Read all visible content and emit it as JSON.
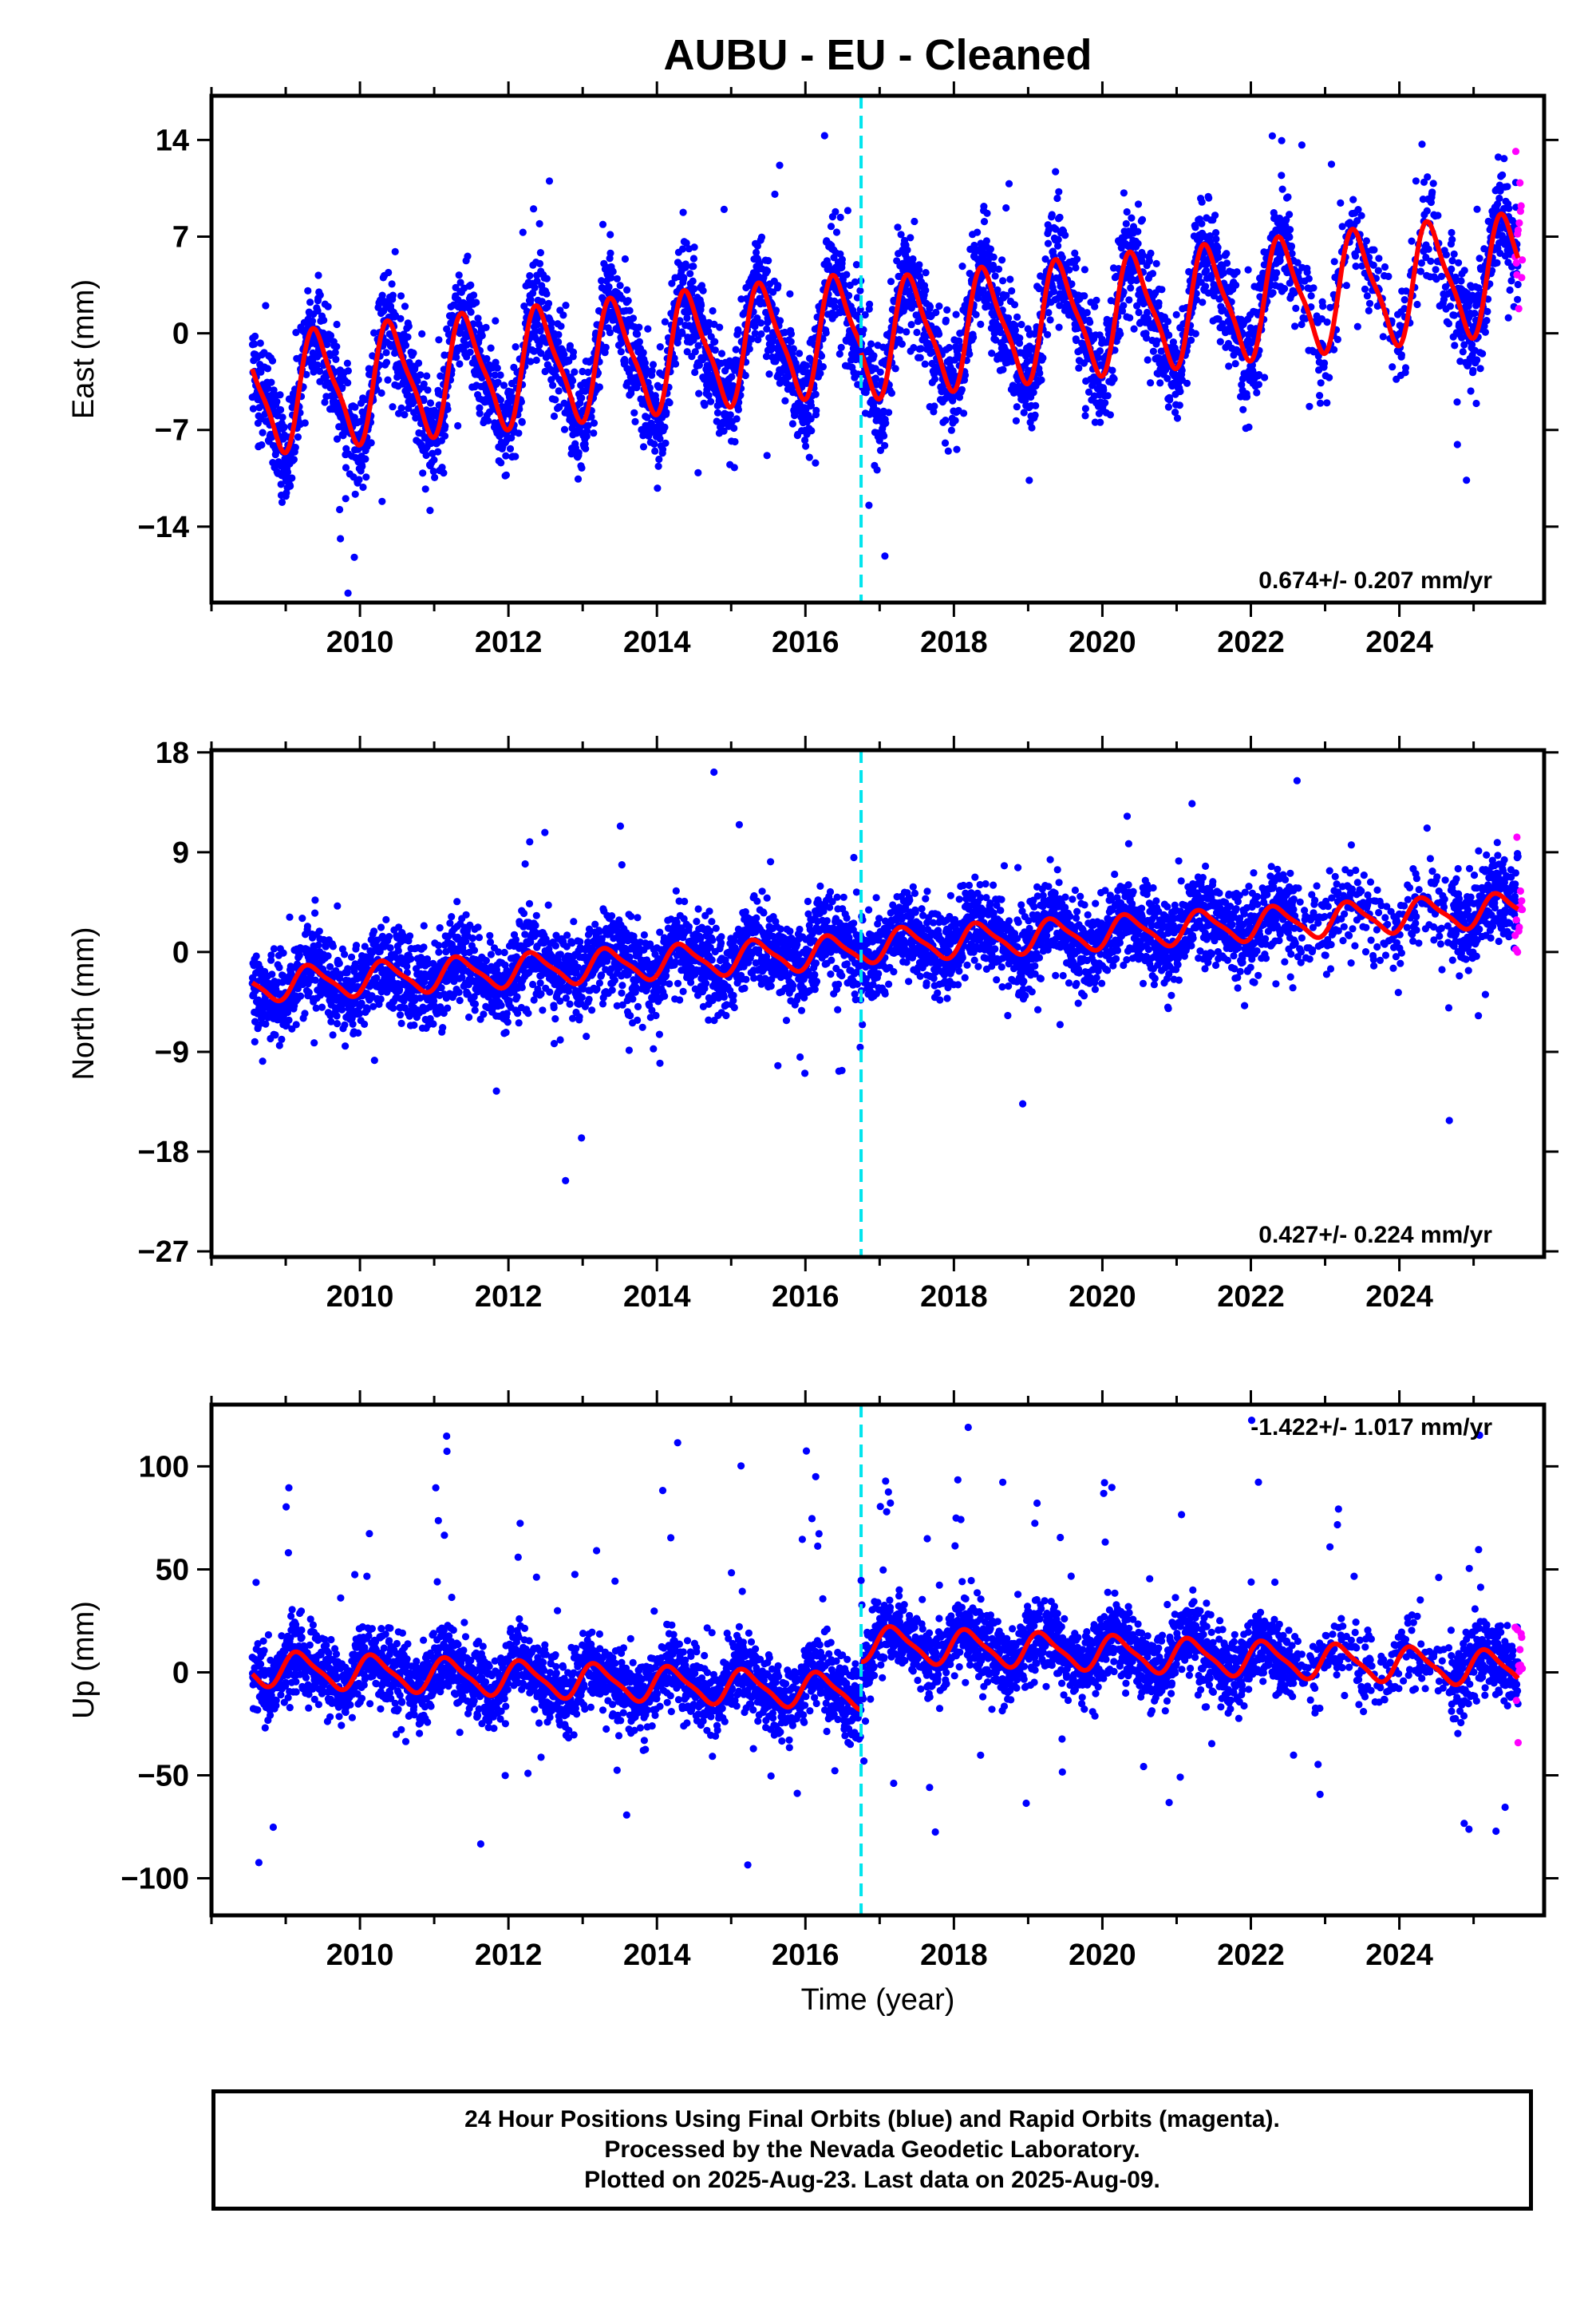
{
  "title": "AUBU  - EU - Cleaned",
  "colors": {
    "final_orbits": "#0000ff",
    "rapid_orbits": "#ff00ff",
    "model_fit": "#ff0000",
    "offset_line": "#00e5ee"
  },
  "chart_data": [
    {
      "type": "scatter",
      "component": "east",
      "ylabel": "East (mm)",
      "xlim": [
        2008.0,
        2025.95
      ],
      "ylim": [
        -19.5,
        17.2
      ],
      "y_ticks": [
        14,
        7,
        0,
        -7,
        -14
      ],
      "y_tick_labels": [
        "14",
        "7",
        "0",
        "−7",
        "−14"
      ],
      "x_ticks": [
        2010,
        2012,
        2014,
        2016,
        2018,
        2020,
        2022,
        2024
      ],
      "x_tick_labels": [
        "2010",
        "2012",
        "2014",
        "2016",
        "2018",
        "2020",
        "2022",
        "2024"
      ],
      "rate_label": "0.674+/- 0.207 mm/yr",
      "offset_epoch": 2016.75,
      "data_span": [
        2008.55,
        2025.6
      ],
      "rapid_span": [
        2025.5,
        2025.6
      ],
      "model": {
        "pre_offset": {
          "start": -4.5,
          "slope": 0.55
        },
        "post_offset": {
          "start": -0.5,
          "slope": 0.55
        },
        "annual_amplitude": 4.0,
        "annual_phase": -0.18
      }
    },
    {
      "type": "scatter",
      "component": "north",
      "ylabel": "North (mm)",
      "xlim": [
        2008.0,
        2025.95
      ],
      "ylim": [
        -27.5,
        18.2
      ],
      "y_ticks": [
        18,
        9,
        0,
        -9,
        -18,
        -27
      ],
      "y_tick_labels": [
        "18",
        "9",
        "0",
        "−9",
        "−18",
        "−27"
      ],
      "x_ticks": [
        2010,
        2012,
        2014,
        2016,
        2018,
        2020,
        2022,
        2024
      ],
      "x_tick_labels": [
        "2010",
        "2012",
        "2014",
        "2016",
        "2018",
        "2020",
        "2022",
        "2024"
      ],
      "rate_label": "0.427+/- 0.224 mm/yr",
      "offset_epoch": 2016.75,
      "data_span": [
        2008.55,
        2025.6
      ],
      "rapid_span": [
        2025.5,
        2025.6
      ],
      "model": {
        "pre_offset": {
          "start": -3.0,
          "slope": 0.38
        },
        "post_offset": {
          "start": 0.5,
          "slope": 0.38
        },
        "annual_amplitude": 1.4,
        "annual_phase": -0.1
      }
    },
    {
      "type": "scatter",
      "component": "up",
      "ylabel": "Up (mm)",
      "xlabel": "Time (year)",
      "xlim": [
        2008.0,
        2025.95
      ],
      "ylim": [
        -118,
        130
      ],
      "y_ticks": [
        100,
        50,
        0,
        -50,
        -100
      ],
      "y_tick_labels": [
        "100",
        "50",
        "0",
        "−50",
        "−100"
      ],
      "x_ticks": [
        2010,
        2012,
        2014,
        2016,
        2018,
        2020,
        2022,
        2024
      ],
      "x_tick_labels": [
        "2010",
        "2012",
        "2014",
        "2016",
        "2018",
        "2020",
        "2022",
        "2024"
      ],
      "rate_label": "-1.422+/- 1.017 mm/yr",
      "offset_epoch": 2016.75,
      "data_span": [
        2008.55,
        2025.6
      ],
      "rapid_span": [
        2025.5,
        2025.6
      ],
      "model": {
        "pre_offset": {
          "start": 2.0,
          "slope": -1.4
        },
        "post_offset": {
          "start": 14.0,
          "slope": -1.4
        },
        "annual_amplitude": 8.0,
        "annual_phase": 0.05
      }
    }
  ],
  "legend": {
    "line1": "24 Hour Positions Using Final Orbits (blue) and Rapid Orbits (magenta).",
    "line2": "Processed by the Nevada Geodetic Laboratory.",
    "line3": "Plotted on 2025-Aug-23. Last data on 2025-Aug-09."
  }
}
